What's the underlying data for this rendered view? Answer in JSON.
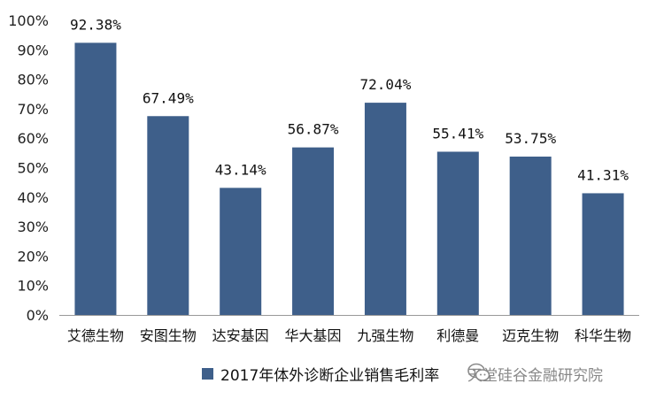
{
  "chart_data": {
    "type": "bar",
    "categories": [
      "艾德生物",
      "安图生物",
      "达安基因",
      "华大基因",
      "九强生物",
      "利德曼",
      "迈克生物",
      "科华生物"
    ],
    "series": [
      {
        "name": "2017年体外诊断企业销售毛利率",
        "values": [
          92.38,
          67.49,
          43.14,
          56.87,
          72.04,
          55.41,
          53.75,
          41.31
        ],
        "data_labels": [
          "92.38%",
          "67.49%",
          "43.14%",
          "56.87%",
          "72.04%",
          "55.41%",
          "53.75%",
          "41.31%"
        ]
      }
    ],
    "ylim": [
      0,
      100
    ],
    "yticks": [
      "0%",
      "10%",
      "20%",
      "30%",
      "40%",
      "50%",
      "60%",
      "70%",
      "80%",
      "90%",
      "100%"
    ],
    "grid": false,
    "legend": "bottom",
    "bar_color": "#3E5F8A"
  },
  "watermark": {
    "text": "天堂硅谷金融研究院",
    "icon": "wechat-icon"
  }
}
